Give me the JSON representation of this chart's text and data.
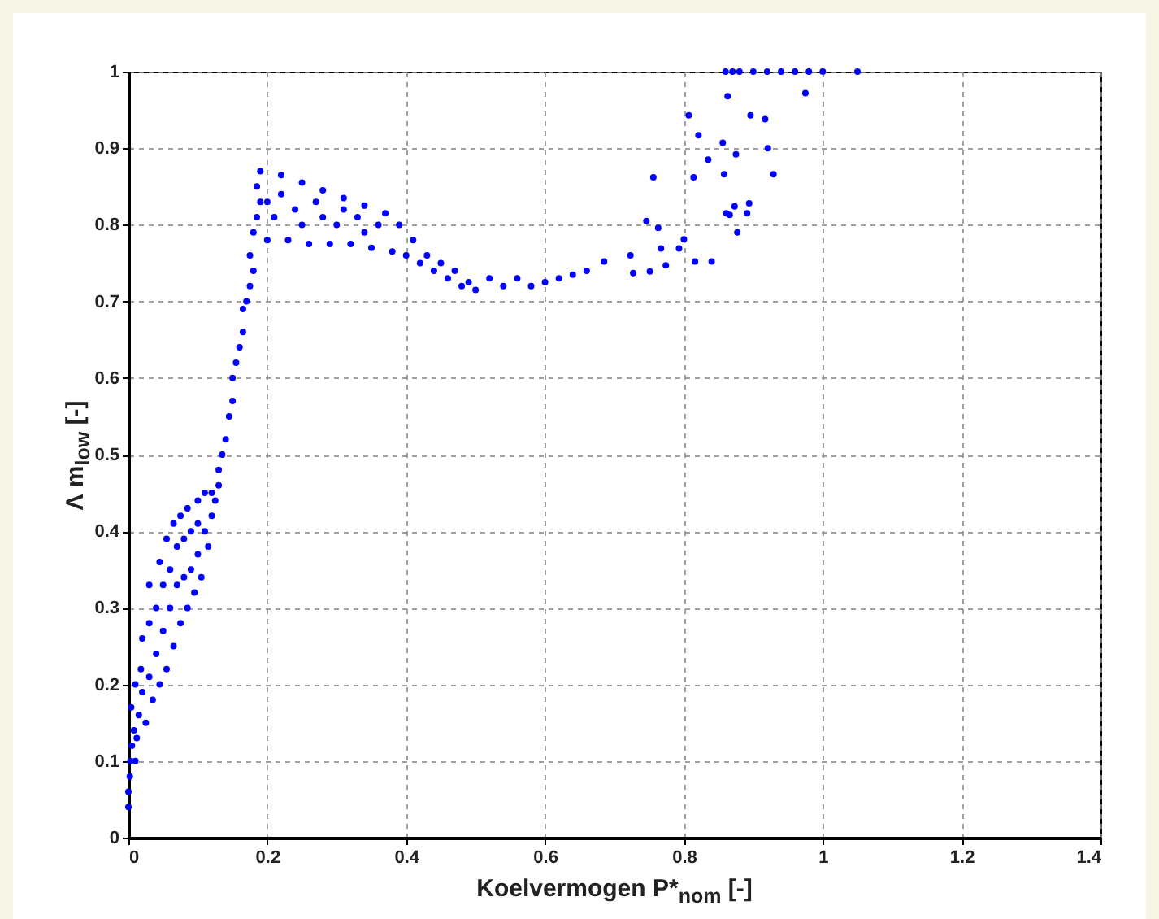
{
  "chart_data": {
    "type": "scatter",
    "xlabel": "Koelvermogen P*$_{nom}$ [-]",
    "ylabel": "Λ m$_{low}$ [-]",
    "x": [
      0,
      0,
      0.002,
      0.003,
      0.005,
      0.008,
      0.004,
      0.01,
      0.012,
      0.015,
      0.01,
      0.018,
      0.02,
      0.025,
      0.02,
      0.03,
      0.03,
      0.035,
      0.03,
      0.04,
      0.04,
      0.045,
      0.045,
      0.05,
      0.05,
      0.055,
      0.055,
      0.06,
      0.06,
      0.065,
      0.065,
      0.07,
      0.07,
      0.075,
      0.075,
      0.08,
      0.08,
      0.085,
      0.085,
      0.09,
      0.09,
      0.095,
      0.1,
      0.1,
      0.1,
      0.105,
      0.11,
      0.11,
      0.115,
      0.12,
      0.12,
      0.125,
      0.13,
      0.13,
      0.135,
      0.14,
      0.145,
      0.15,
      0.15,
      0.155,
      0.16,
      0.165,
      0.165,
      0.17,
      0.175,
      0.18,
      0.175,
      0.18,
      0.185,
      0.19,
      0.185,
      0.19,
      0.22,
      0.25,
      0.28,
      0.31,
      0.34,
      0.37,
      0.2,
      0.23,
      0.26,
      0.29,
      0.32,
      0.35,
      0.38,
      0.2,
      0.21,
      0.22,
      0.24,
      0.25,
      0.27,
      0.28,
      0.3,
      0.31,
      0.33,
      0.34,
      0.36,
      0.39,
      0.4,
      0.41,
      0.42,
      0.43,
      0.44,
      0.45,
      0.46,
      0.47,
      0.48,
      0.49,
      0.5,
      0.52,
      0.54,
      0.56,
      0.58,
      0.6,
      0.62,
      0.64,
      0.66,
      0.685,
      0.723,
      0.727,
      0.746,
      0.756,
      0.763,
      0.767,
      0.751,
      0.774,
      0.793,
      0.8,
      0.807,
      0.814,
      0.816,
      0.821,
      0.835,
      0.84,
      0.856,
      0.858,
      0.861,
      0.863,
      0.866,
      0.873,
      0.875,
      0.877,
      0.891,
      0.894,
      0.896,
      0.917,
      0.921,
      0.929,
      0.975,
      0.86,
      0.87,
      0.88,
      0.9,
      0.92,
      0.94,
      0.96,
      0.98,
      1.0,
      1.05
    ],
    "values": [
      0.04,
      0.06,
      0.08,
      0.1,
      0.12,
      0.14,
      0.17,
      0.1,
      0.13,
      0.16,
      0.2,
      0.22,
      0.19,
      0.15,
      0.26,
      0.28,
      0.21,
      0.18,
      0.33,
      0.3,
      0.24,
      0.2,
      0.36,
      0.33,
      0.27,
      0.22,
      0.39,
      0.35,
      0.3,
      0.25,
      0.41,
      0.38,
      0.33,
      0.28,
      0.42,
      0.39,
      0.34,
      0.3,
      0.43,
      0.4,
      0.35,
      0.32,
      0.44,
      0.41,
      0.37,
      0.34,
      0.45,
      0.4,
      0.38,
      0.45,
      0.42,
      0.44,
      0.46,
      0.48,
      0.5,
      0.52,
      0.55,
      0.57,
      0.6,
      0.62,
      0.64,
      0.66,
      0.69,
      0.7,
      0.72,
      0.74,
      0.76,
      0.79,
      0.81,
      0.83,
      0.85,
      0.87,
      0.865,
      0.855,
      0.845,
      0.835,
      0.825,
      0.815,
      0.78,
      0.78,
      0.775,
      0.775,
      0.775,
      0.77,
      0.765,
      0.83,
      0.81,
      0.84,
      0.82,
      0.8,
      0.83,
      0.81,
      0.8,
      0.82,
      0.81,
      0.79,
      0.8,
      0.8,
      0.76,
      0.78,
      0.75,
      0.76,
      0.74,
      0.75,
      0.73,
      0.74,
      0.72,
      0.725,
      0.715,
      0.73,
      0.72,
      0.73,
      0.72,
      0.725,
      0.73,
      0.735,
      0.74,
      0.752,
      0.76,
      0.737,
      0.805,
      0.862,
      0.796,
      0.769,
      0.739,
      0.747,
      0.769,
      0.781,
      0.943,
      0.862,
      0.752,
      0.917,
      0.885,
      0.752,
      0.907,
      0.866,
      0.815,
      0.968,
      0.813,
      0.824,
      0.892,
      0.79,
      0.815,
      0.828,
      0.943,
      0.938,
      0.9,
      0.866,
      0.972,
      1,
      1,
      1,
      1,
      1,
      1,
      1,
      1,
      1,
      1
    ],
    "color": "#0000ff",
    "marker": "circle",
    "grid": true,
    "xlim": [
      0,
      1.4
    ],
    "xticks": [
      0,
      0.2,
      0.4,
      0.6,
      0.8,
      1,
      1.2,
      1.4
    ],
    "ylim": [
      0,
      1
    ],
    "yticks": [
      0,
      0.1,
      0.2,
      0.3,
      0.4,
      0.5,
      0.6,
      0.7,
      0.8,
      0.9,
      1
    ]
  }
}
